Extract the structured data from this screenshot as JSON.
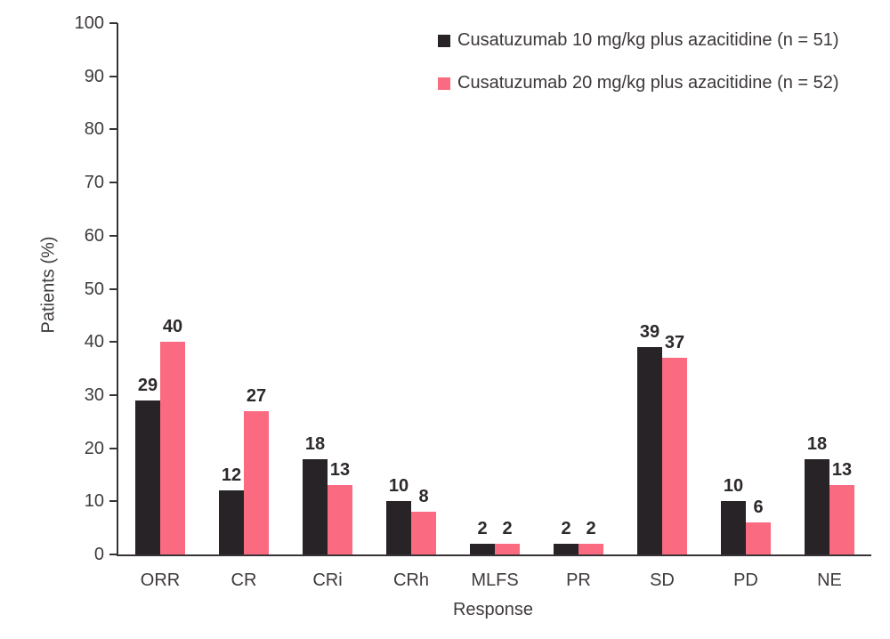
{
  "chart_data": {
    "type": "bar",
    "title": "",
    "categories": [
      "ORR",
      "CR",
      "CRi",
      "CRh",
      "MLFS",
      "PR",
      "SD",
      "PD",
      "NE"
    ],
    "series": [
      {
        "name": "Cusatuzumab 10 mg/kg plus azacitidine (n = 51)",
        "color": "#272327",
        "values": [
          29,
          12,
          18,
          10,
          2,
          2,
          39,
          10,
          18
        ]
      },
      {
        "name": "Cusatuzumab 20 mg/kg plus azacitidine (n = 52)",
        "color": "#fa6b82",
        "values": [
          40,
          27,
          13,
          8,
          2,
          2,
          37,
          6,
          13
        ]
      }
    ],
    "xlabel": "Response",
    "ylabel": "Patients (%)",
    "ylim": [
      0,
      100
    ],
    "yticks": [
      0,
      10,
      20,
      30,
      40,
      50,
      60,
      70,
      80,
      90,
      100
    ],
    "grid": false,
    "legend_position": "top-right",
    "value_labels": true
  },
  "colors": {
    "axis": "#383338",
    "tick_text": "#3f3a3e",
    "value_text": "#2d282c",
    "background": "#ffffff"
  }
}
